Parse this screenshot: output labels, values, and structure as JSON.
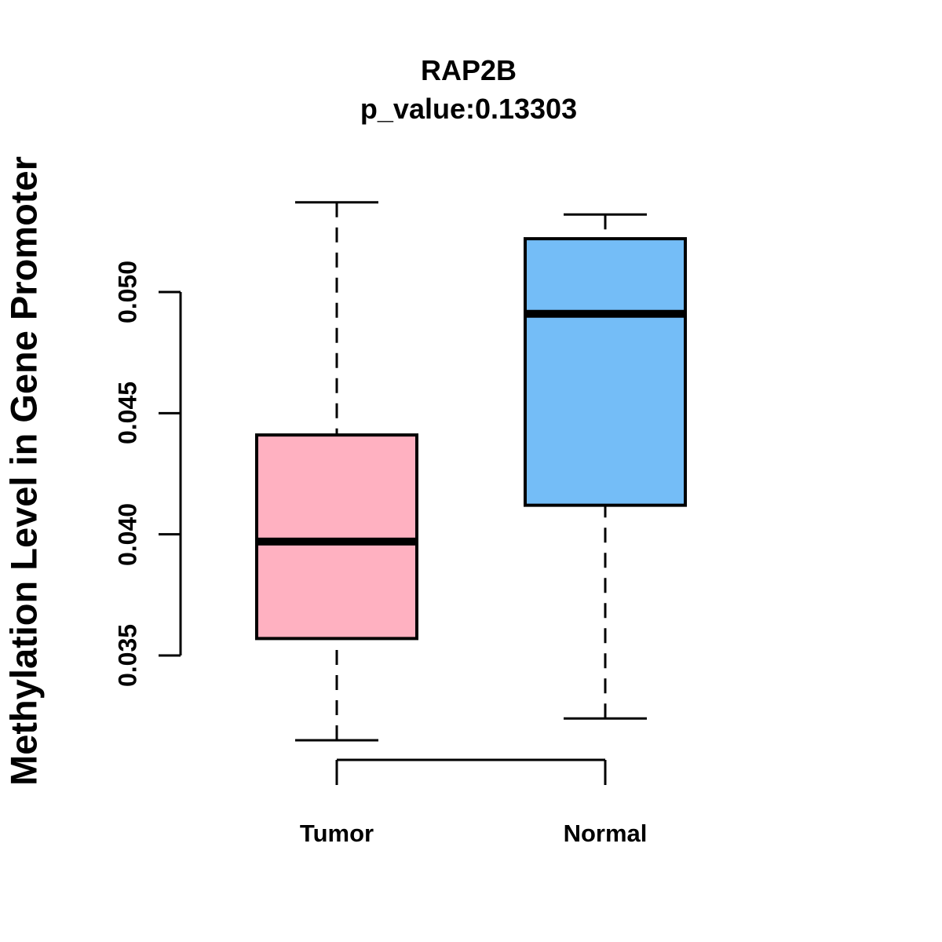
{
  "chart_data": {
    "type": "box",
    "title": "RAP2B",
    "subtitle": "p_value:0.13303",
    "ylabel": "Methylation Level in Gene Promoter",
    "xlabel": "",
    "categories": [
      "Tumor",
      "Normal"
    ],
    "y_ticks": [
      0.035,
      0.04,
      0.045,
      0.05
    ],
    "y_tick_labels": [
      "0.035",
      "0.040",
      "0.045",
      "0.050"
    ],
    "ylim": [
      0.0305,
      0.0545
    ],
    "grid": false,
    "legend": "none",
    "colors": {
      "tumor_fill": "#FFB1C1",
      "normal_fill": "#74BDF7",
      "stroke": "#000000",
      "background": "#FFFFFF"
    },
    "series": [
      {
        "name": "Tumor",
        "fill": "#FFB1C1",
        "whisker_low": 0.0315,
        "q1": 0.0357,
        "median": 0.0397,
        "q3": 0.0441,
        "whisker_high": 0.0537
      },
      {
        "name": "Normal",
        "fill": "#74BDF7",
        "whisker_low": 0.0324,
        "q1": 0.0412,
        "median": 0.0491,
        "q3": 0.0522,
        "whisker_high": 0.0532
      }
    ]
  }
}
